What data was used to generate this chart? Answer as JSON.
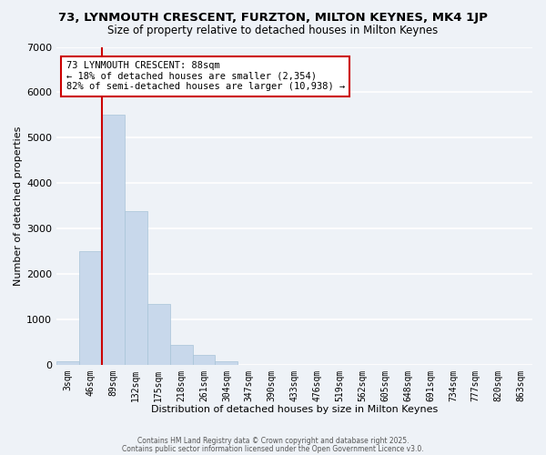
{
  "title": "73, LYNMOUTH CRESCENT, FURZTON, MILTON KEYNES, MK4 1JP",
  "subtitle": "Size of property relative to detached houses in Milton Keynes",
  "xlabel": "Distribution of detached houses by size in Milton Keynes",
  "ylabel": "Number of detached properties",
  "bar_color": "#c8d8eb",
  "bar_edgecolor": "#a8c4d8",
  "bin_labels": [
    "3sqm",
    "46sqm",
    "89sqm",
    "132sqm",
    "175sqm",
    "218sqm",
    "261sqm",
    "304sqm",
    "347sqm",
    "390sqm",
    "433sqm",
    "476sqm",
    "519sqm",
    "562sqm",
    "605sqm",
    "648sqm",
    "691sqm",
    "734sqm",
    "777sqm",
    "820sqm",
    "863sqm"
  ],
  "bar_heights": [
    80,
    2500,
    5500,
    3380,
    1340,
    430,
    220,
    70,
    0,
    0,
    0,
    0,
    0,
    0,
    0,
    0,
    0,
    0,
    0,
    0,
    0
  ],
  "ylim": [
    0,
    7000
  ],
  "yticks": [
    0,
    1000,
    2000,
    3000,
    4000,
    5000,
    6000,
    7000
  ],
  "vline_x_idx": 2,
  "vline_color": "#cc0000",
  "annotation_title": "73 LYNMOUTH CRESCENT: 88sqm",
  "annotation_line2": "← 18% of detached houses are smaller (2,354)",
  "annotation_line3": "82% of semi-detached houses are larger (10,938) →",
  "annotation_box_facecolor": "#ffffff",
  "annotation_box_edgecolor": "#cc0000",
  "footer1": "Contains HM Land Registry data © Crown copyright and database right 2025.",
  "footer2": "Contains public sector information licensed under the Open Government Licence v3.0.",
  "background_color": "#eef2f7",
  "grid_color": "#ffffff"
}
